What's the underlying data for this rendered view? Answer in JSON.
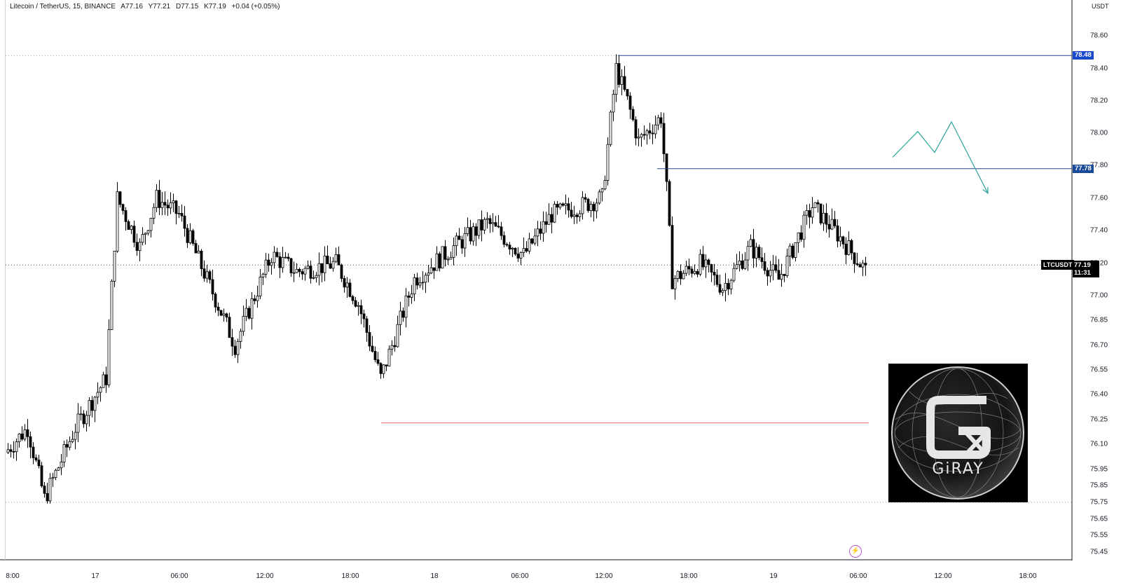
{
  "header": {
    "symbol_name": "Litecoin / TetherUS, 15, BINANCE",
    "open": "A77.16",
    "high": "Y77.21",
    "low": "D77.15",
    "close": "K77.19",
    "change": "+0.04 (+0.05%)"
  },
  "price_axis": {
    "unit": "USDT",
    "ticks": [
      "78.60",
      "78.40",
      "78.20",
      "78.00",
      "77.80",
      "77.60",
      "77.40",
      "77.20",
      "77.00",
      "76.85",
      "76.70",
      "76.55",
      "76.40",
      "76.25",
      "76.10",
      "75.95",
      "75.85",
      "75.75",
      "75.65",
      "75.55",
      "75.45"
    ]
  },
  "time_axis": {
    "ticks": [
      "8:00",
      "17",
      "06:00",
      "12:00",
      "18:00",
      "18",
      "06:00",
      "12:00",
      "18:00",
      "19",
      "06:00",
      "12:00",
      "18:00"
    ]
  },
  "price_tags": {
    "high_level": "78.48",
    "resistance_level": "77.78",
    "symbol": "LTCUSDT",
    "last_price": "77.19",
    "countdown": "11:31"
  },
  "logo": {
    "brand": "GiRAY"
  },
  "colors": {
    "candle_up_body": "#ffffff",
    "candle_down_body": "#000000",
    "candle_outline": "#000000",
    "level_line": "#2a4a8a",
    "high_tag": "#1848cc",
    "resistance_tag": "#1a4a9a",
    "support_line": "#e07070",
    "projection_path": "#29a39a",
    "dotted_line": "#9aa0a6"
  },
  "chart_data": {
    "type": "candlestick",
    "title": "Litecoin / TetherUS, 15, BINANCE",
    "ylabel": "USDT",
    "x_labels": [
      "8:00",
      "17",
      "06:00",
      "12:00",
      "18:00",
      "18",
      "06:00",
      "12:00",
      "18:00",
      "19",
      "06:00",
      "12:00",
      "18:00"
    ],
    "ylim": [
      75.45,
      78.6
    ],
    "price_path_anchors": [
      {
        "bar": 0,
        "price": 76.05
      },
      {
        "bar": 8,
        "price": 76.2
      },
      {
        "bar": 14,
        "price": 75.77
      },
      {
        "bar": 25,
        "price": 76.2
      },
      {
        "bar": 36,
        "price": 76.5
      },
      {
        "bar": 40,
        "price": 77.6
      },
      {
        "bar": 48,
        "price": 77.3
      },
      {
        "bar": 54,
        "price": 77.6
      },
      {
        "bar": 62,
        "price": 77.5
      },
      {
        "bar": 72,
        "price": 77.1
      },
      {
        "bar": 82,
        "price": 76.7
      },
      {
        "bar": 95,
        "price": 77.25
      },
      {
        "bar": 104,
        "price": 77.15
      },
      {
        "bar": 118,
        "price": 77.2
      },
      {
        "bar": 126,
        "price": 76.95
      },
      {
        "bar": 134,
        "price": 76.5
      },
      {
        "bar": 146,
        "price": 77.1
      },
      {
        "bar": 160,
        "price": 77.3
      },
      {
        "bar": 172,
        "price": 77.45
      },
      {
        "bar": 185,
        "price": 77.25
      },
      {
        "bar": 195,
        "price": 77.5
      },
      {
        "bar": 205,
        "price": 77.55
      },
      {
        "bar": 213,
        "price": 77.6
      },
      {
        "bar": 218,
        "price": 78.4
      },
      {
        "bar": 222,
        "price": 78.2
      },
      {
        "bar": 226,
        "price": 77.95
      },
      {
        "bar": 234,
        "price": 78.1
      },
      {
        "bar": 236,
        "price": 77.65
      },
      {
        "bar": 238,
        "price": 77.1
      },
      {
        "bar": 248,
        "price": 77.2
      },
      {
        "bar": 256,
        "price": 77.05
      },
      {
        "bar": 266,
        "price": 77.3
      },
      {
        "bar": 276,
        "price": 77.1
      },
      {
        "bar": 288,
        "price": 77.55
      },
      {
        "bar": 296,
        "price": 77.4
      },
      {
        "bar": 306,
        "price": 77.18
      }
    ],
    "levels": {
      "high": 78.48,
      "resistance": 77.78,
      "support": 76.23,
      "range_low": 75.75,
      "last": 77.19
    },
    "projection": [
      {
        "bar": 316,
        "price": 77.85
      },
      {
        "bar": 325,
        "price": 78.01
      },
      {
        "bar": 331,
        "price": 77.88
      },
      {
        "bar": 337,
        "price": 78.07
      },
      {
        "bar": 350,
        "price": 77.63
      }
    ]
  }
}
